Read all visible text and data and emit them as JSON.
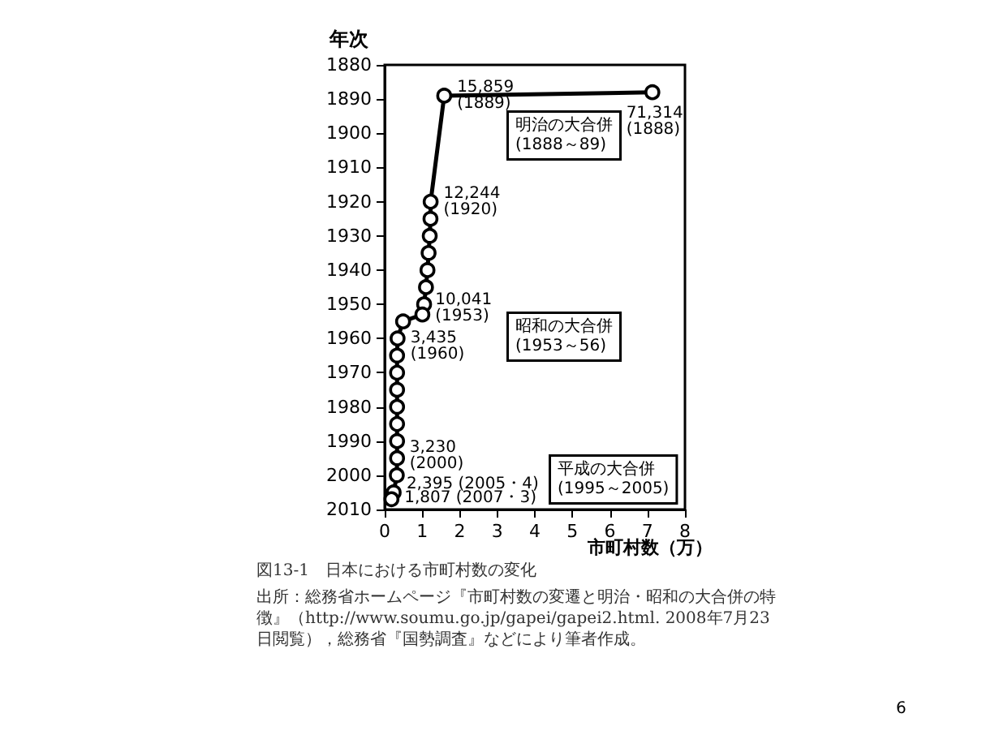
{
  "chart_data": {
    "type": "line",
    "title": "図13-1　日本における市町村数の変化",
    "xlabel": "市町村数（万）",
    "ylabel": "年次",
    "x": [
      7.1314,
      1.5859,
      1.2244,
      1.22,
      1.2,
      1.17,
      1.14,
      1.1,
      1.05,
      1.0041,
      0.49,
      0.3435,
      0.33,
      0.33,
      0.33,
      0.33,
      0.33,
      0.33,
      0.33,
      0.323,
      0.2395,
      0.1807
    ],
    "values": [
      1888,
      1889,
      1920,
      1925,
      1930,
      1935,
      1940,
      1945,
      1950,
      1953,
      1955,
      1960,
      1965,
      1970,
      1975,
      1980,
      1985,
      1990,
      1995,
      2000,
      2005,
      2007
    ],
    "value_labels": [
      "71,314\n(1888)",
      "15,859\n(1889)",
      "12,244\n(1920)",
      null,
      null,
      null,
      null,
      null,
      null,
      "10,041\n(1953)",
      null,
      "3,435\n(1960)",
      null,
      null,
      null,
      null,
      null,
      null,
      null,
      "3,230\n(2000)",
      "2,395 (2005・4)",
      "1,807 (2007・3)"
    ],
    "color": "#000000",
    "marker": "circle",
    "xlim": [
      0,
      8
    ],
    "xticks": [
      0,
      1,
      2,
      3,
      4,
      5,
      6,
      7,
      8
    ],
    "ylim": [
      2010,
      1880
    ],
    "yticks": [
      1880,
      1890,
      1900,
      1910,
      1920,
      1930,
      1940,
      1950,
      1960,
      1970,
      1980,
      1990,
      2000,
      2010
    ],
    "annotations": [
      "明治の大合併\n(1888～89)",
      "昭和の大合併\n(1953～56)",
      "平成の大合併\n(1995～2005)",
      "出所：総務省ホームページ『市町村数の変遷と明治・昭和の大合併の特徴』（http://www.soumu.go.jp/gapei/gapei2.html. 2008年7月23日閲覧），総務省『国勢調査』などにより筆者作成。",
      "6"
    ]
  }
}
